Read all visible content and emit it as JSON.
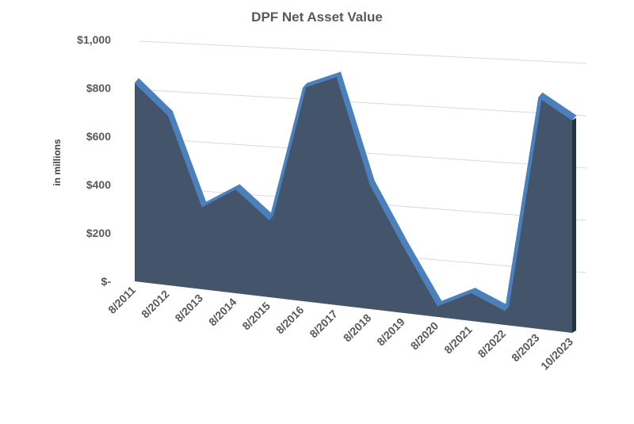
{
  "chart_data": {
    "type": "area",
    "title": "DPF Net Asset Value",
    "ylabel": "in millions",
    "xlabel": "",
    "categories": [
      "8/2011",
      "8/2012",
      "8/2013",
      "8/2014",
      "8/2015",
      "8/2016",
      "8/2017",
      "8/2018",
      "8/2019",
      "8/2020",
      "8/2021",
      "8/2022",
      "8/2023",
      "10/2023"
    ],
    "series": [
      {
        "values": [
          820,
          690,
          330,
          410,
          300,
          815,
          860,
          460,
          240,
          40,
          100,
          50,
          800,
          725
        ]
      }
    ],
    "ylim": [
      0,
      1000
    ],
    "yticks": [
      {
        "value": 0,
        "label": "$-"
      },
      {
        "value": 200,
        "label": "$200"
      },
      {
        "value": 400,
        "label": "$400"
      },
      {
        "value": 600,
        "label": "$600"
      },
      {
        "value": 800,
        "label": "$800"
      },
      {
        "value": 1000,
        "label": "$1,000"
      }
    ],
    "grid": true,
    "legend": "none",
    "style": "3d-perspective",
    "colors": {
      "face": "#44546a",
      "top": "#4a81bd",
      "side": "#27323f",
      "grid": "#d9d9d9",
      "text": "#595959"
    }
  }
}
